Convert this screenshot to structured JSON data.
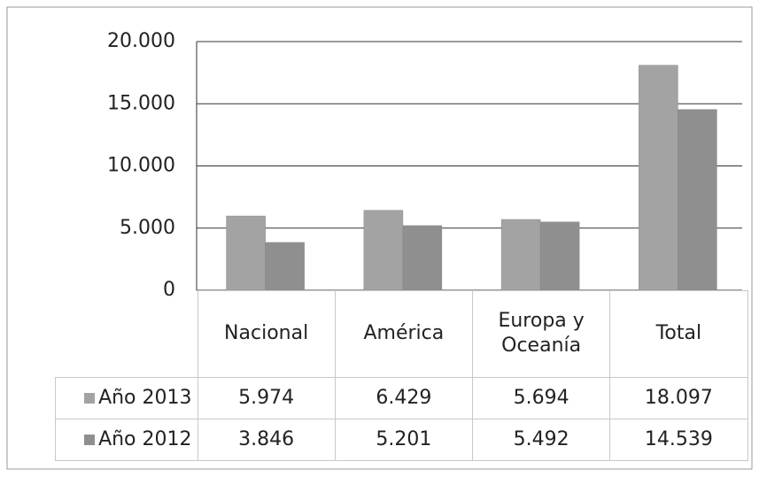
{
  "chart_data": {
    "type": "bar",
    "categories": [
      "Nacional",
      "América",
      "Europa y Oceanía",
      "Total"
    ],
    "series": [
      {
        "name": "Año 2013",
        "color": "#a3a3a3",
        "values": [
          5974,
          6429,
          5694,
          18097
        ],
        "value_labels": [
          "5.974",
          "6.429",
          "5.694",
          "18.097"
        ]
      },
      {
        "name": "Año 2012",
        "color": "#8f8f8f",
        "values": [
          3846,
          5201,
          5492,
          14539
        ],
        "value_labels": [
          "3.846",
          "5.201",
          "5.492",
          "14.539"
        ]
      }
    ],
    "ylim": [
      0,
      20000
    ],
    "yticks": [
      0,
      {
        "value": 5000,
        "label": "5.000"
      },
      {
        "value": 10000,
        "label": "10.000"
      },
      {
        "value": 15000,
        "label": "15.000"
      },
      {
        "value": 20000,
        "label": "20.000"
      }
    ],
    "grid": true
  }
}
